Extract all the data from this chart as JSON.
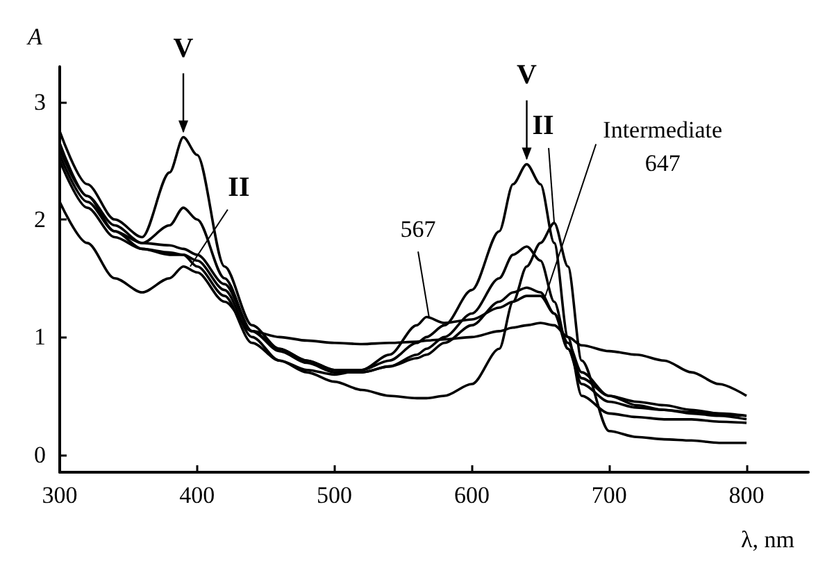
{
  "chart_data": {
    "type": "line",
    "xlabel": "λ, nm",
    "ylabel": "A",
    "xlim": [
      300,
      845
    ],
    "ylim": [
      -0.15,
      3.3
    ],
    "xticks": [
      300,
      400,
      500,
      600,
      700,
      800
    ],
    "yticks": [
      0,
      1,
      2,
      3
    ],
    "grid": false,
    "marker": "none",
    "line_style": "solid",
    "x": [
      300,
      320,
      340,
      360,
      380,
      390,
      400,
      420,
      440,
      460,
      480,
      500,
      520,
      540,
      560,
      567,
      580,
      600,
      620,
      630,
      640,
      650,
      660,
      670,
      680,
      700,
      720,
      740,
      760,
      780,
      800
    ],
    "series": [
      {
        "color": "#000000",
        "values": [
          2.75,
          2.3,
          2.0,
          1.85,
          2.4,
          2.7,
          2.55,
          1.6,
          1.1,
          0.9,
          0.8,
          0.72,
          0.72,
          0.8,
          0.95,
          1.0,
          1.1,
          1.4,
          1.9,
          2.3,
          2.47,
          2.3,
          1.8,
          1.0,
          0.5,
          0.35,
          0.32,
          0.3,
          0.3,
          0.28,
          0.27
        ]
      },
      {
        "color": "#000000",
        "values": [
          2.65,
          2.2,
          1.95,
          1.8,
          1.95,
          2.1,
          2.0,
          1.5,
          1.05,
          0.9,
          0.8,
          0.72,
          0.7,
          0.75,
          0.85,
          0.9,
          1.0,
          1.2,
          1.5,
          1.7,
          1.77,
          1.65,
          1.3,
          0.9,
          0.6,
          0.45,
          0.4,
          0.38,
          0.36,
          0.34,
          0.33
        ]
      },
      {
        "color": "#000000",
        "values": [
          2.55,
          2.15,
          1.9,
          1.8,
          1.78,
          1.75,
          1.7,
          1.45,
          1.05,
          0.88,
          0.78,
          0.7,
          0.7,
          0.75,
          0.82,
          0.85,
          0.95,
          1.1,
          1.3,
          1.38,
          1.42,
          1.38,
          1.2,
          0.9,
          0.65,
          0.5,
          0.45,
          0.42,
          0.38,
          0.35,
          0.33
        ]
      },
      {
        "color": "#000000",
        "values": [
          2.5,
          2.1,
          1.85,
          1.75,
          1.7,
          1.7,
          1.65,
          1.4,
          1.0,
          0.8,
          0.7,
          0.62,
          0.55,
          0.5,
          0.48,
          0.48,
          0.5,
          0.6,
          0.9,
          1.3,
          1.6,
          1.8,
          1.97,
          1.6,
          0.8,
          0.2,
          0.15,
          0.13,
          0.12,
          0.1,
          0.1
        ]
      },
      {
        "color": "#000000",
        "values": [
          2.15,
          1.8,
          1.5,
          1.38,
          1.5,
          1.6,
          1.55,
          1.3,
          1.05,
          1.0,
          0.97,
          0.95,
          0.94,
          0.95,
          0.96,
          0.97,
          0.98,
          1.0,
          1.05,
          1.08,
          1.1,
          1.12,
          1.1,
          1.0,
          0.93,
          0.88,
          0.85,
          0.8,
          0.7,
          0.6,
          0.5
        ]
      },
      {
        "color": "#000000",
        "values": [
          2.6,
          2.2,
          1.9,
          1.75,
          1.72,
          1.7,
          1.6,
          1.35,
          0.95,
          0.8,
          0.72,
          0.68,
          0.72,
          0.85,
          1.1,
          1.17,
          1.12,
          1.15,
          1.25,
          1.3,
          1.35,
          1.35,
          1.2,
          0.95,
          0.7,
          0.5,
          0.42,
          0.38,
          0.35,
          0.33,
          0.3
        ]
      }
    ],
    "annotations": [
      {
        "text": "V",
        "x": 390,
        "y": 2.7
      },
      {
        "text": "V",
        "x": 640,
        "y": 2.47
      },
      {
        "text": "II",
        "x": 395,
        "y": 1.6
      },
      {
        "text": "II",
        "x": 660,
        "y": 1.97
      },
      {
        "text": "Intermediate\n647",
        "x": 653,
        "y": 1.33
      },
      {
        "text": "567",
        "x": 569,
        "y": 1.16
      }
    ]
  }
}
